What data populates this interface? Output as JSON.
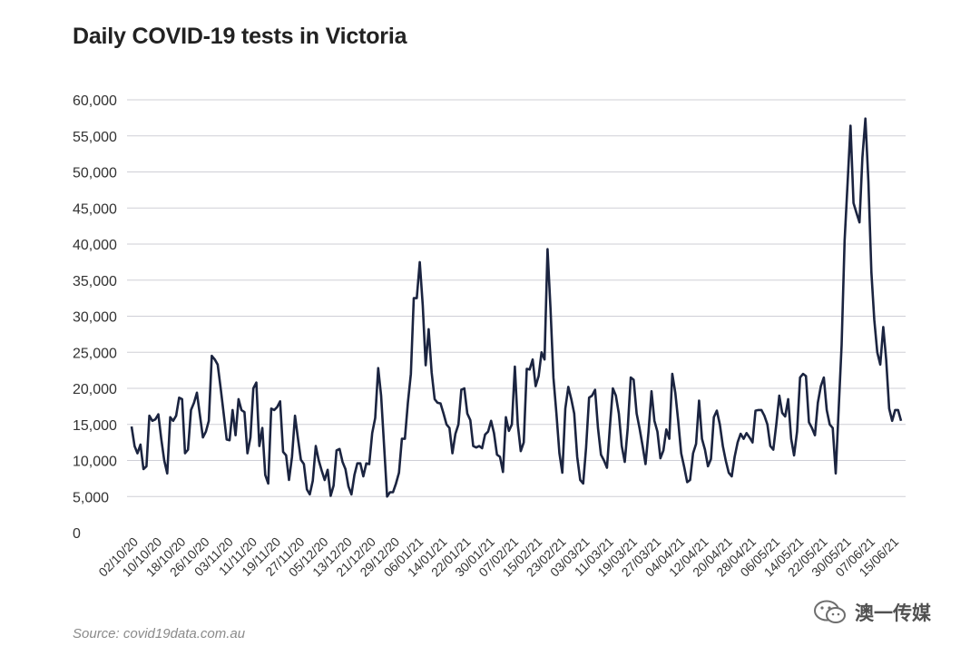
{
  "chart_data": {
    "type": "line",
    "title": "Daily COVID-19 tests in Victoria",
    "xlabel": "",
    "ylabel": "",
    "ylim": [
      0,
      60000
    ],
    "yticks": [
      0,
      5000,
      10000,
      15000,
      20000,
      25000,
      30000,
      35000,
      40000,
      45000,
      50000,
      55000,
      60000
    ],
    "ytick_labels": [
      "0",
      "5,000",
      "10,000",
      "15,000",
      "20,000",
      "25,000",
      "30,000",
      "35,000",
      "40,000",
      "45,000",
      "50,000",
      "55,000",
      "60,000"
    ],
    "xtick_labels": [
      "02/10/20",
      "10/10/20",
      "18/10/20",
      "26/10/20",
      "03/11/20",
      "11/11/20",
      "19/11/20",
      "27/11/20",
      "05/12/20",
      "13/12/20",
      "21/12/20",
      "29/12/20",
      "06/01/21",
      "14/01/21",
      "22/01/21",
      "30/01/21",
      "07/02/21",
      "15/02/21",
      "23/02/21",
      "03/03/21",
      "11/03/21",
      "19/03/21",
      "27/03/21",
      "04/04/21",
      "12/04/21",
      "20/04/21",
      "28/04/21",
      "06/05/21",
      "14/05/21",
      "22/05/21",
      "30/05/21",
      "07/06/21",
      "15/06/21"
    ],
    "x_start": "02/10/20",
    "x_end": "17/06/21",
    "grid": true,
    "legend": "none",
    "line_color": "#1b2440",
    "series": [
      {
        "name": "",
        "values": [
          14700,
          12000,
          11000,
          12200,
          8800,
          9200,
          16200,
          15500,
          15700,
          16400,
          13000,
          10000,
          8200,
          16000,
          15500,
          16200,
          18700,
          18500,
          11000,
          11500,
          17000,
          18000,
          19400,
          16300,
          13200,
          14000,
          15500,
          24500,
          24000,
          23300,
          20000,
          16500,
          12900,
          12800,
          17000,
          13500,
          18500,
          17000,
          16700,
          11000,
          13200,
          20000,
          20800,
          12000,
          14500,
          8000,
          6800,
          17200,
          17000,
          17400,
          18200,
          11200,
          10700,
          7300,
          10500,
          16200,
          13000,
          10100,
          9500,
          6000,
          5300,
          7200,
          12000,
          10000,
          8600,
          7300,
          8700,
          5100,
          6500,
          11400,
          11600,
          9800,
          8800,
          6400,
          5300,
          8000,
          9600,
          9600,
          7800,
          9600,
          9500,
          13800,
          15900,
          22800,
          19000,
          12000,
          5000,
          5600,
          5600,
          6800,
          8300,
          13000,
          13000,
          18000,
          22000,
          32500,
          32500,
          37500,
          31500,
          23200,
          28200,
          22200,
          18500,
          18000,
          17900,
          16500,
          15000,
          14500,
          11000,
          13700,
          15000,
          19800,
          20000,
          16500,
          15600,
          12000,
          11800,
          12000,
          11700,
          13600,
          14000,
          15500,
          13800,
          10800,
          10500,
          8400,
          16000,
          14100,
          15000,
          23000,
          15000,
          11300,
          12500,
          22700,
          22600,
          24000,
          20300,
          21700,
          25000,
          24000,
          39300,
          31000,
          21500,
          16500,
          11000,
          8300,
          17200,
          20200,
          18500,
          16500,
          10500,
          7300,
          6800,
          11800,
          18700,
          19000,
          19800,
          14500,
          10800,
          10000,
          9000,
          14600,
          20000,
          19000,
          16500,
          12000,
          9800,
          14500,
          21500,
          21200,
          16500,
          14400,
          12000,
          9500,
          14000,
          19600,
          15500,
          14000,
          10300,
          11400,
          14300,
          13000,
          22000,
          19400,
          15500,
          11000,
          9100,
          7000,
          7300,
          11000,
          12300,
          18300,
          13000,
          11500,
          9200,
          10200,
          16000,
          16900,
          15000,
          12000,
          10000,
          8300,
          7800,
          10500,
          12500,
          13700,
          13000,
          13800,
          13200,
          12500,
          16900,
          17000,
          17000,
          16200,
          15000,
          12000,
          11500,
          15000,
          19000,
          16600,
          16100,
          18500,
          13000,
          10700,
          14000,
          21500,
          22000,
          21700,
          15300,
          14500,
          13500,
          18000,
          20300,
          21500,
          17000,
          15000,
          14500,
          8200,
          17000,
          26000,
          40500,
          48500,
          56400,
          45700,
          44300,
          43000,
          52000,
          57400,
          48700,
          36100,
          29500,
          25000,
          23300,
          28500,
          24000,
          17200,
          15500,
          17000,
          17000,
          15500
        ]
      }
    ]
  },
  "source": "Source: covid19data.com.au",
  "watermark": "澳一传媒"
}
